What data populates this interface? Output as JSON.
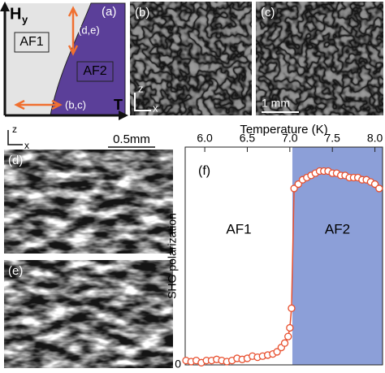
{
  "panel_a": {
    "label": "(a)",
    "y_axis": "H",
    "y_axis_sub": "y",
    "x_axis": "T",
    "phase_1": "AF1",
    "phase_2": "AF2",
    "arrow_vertical": "(d,e)",
    "arrow_horizontal": "(b,c)"
  },
  "panel_b": {
    "label": "(b)",
    "axis_z": "z",
    "axis_x": "x"
  },
  "panel_c": {
    "label": "(c)",
    "scale_bar": "1 mm"
  },
  "panel_d": {
    "label": "(d)",
    "axis_z": "z",
    "axis_x": "x",
    "scale_bar": "0.5mm"
  },
  "panel_e": {
    "label": "(e)"
  },
  "chart_data": {
    "type": "scatter",
    "label": "(f)",
    "x_label": "Temperature (K)",
    "y_label": "SHG polarization",
    "x": [
      5.78,
      5.84,
      5.9,
      5.96,
      6.02,
      6.08,
      6.14,
      6.2,
      6.26,
      6.32,
      6.38,
      6.44,
      6.5,
      6.56,
      6.62,
      6.68,
      6.74,
      6.8,
      6.85,
      6.9,
      6.94,
      6.98,
      7.0,
      7.02,
      7.05,
      7.1,
      7.15,
      7.2,
      7.25,
      7.3,
      7.35,
      7.4,
      7.45,
      7.5,
      7.55,
      7.6,
      7.65,
      7.7,
      7.75,
      7.8,
      7.85,
      7.9,
      7.95,
      8.0,
      8.05
    ],
    "values": [
      0.02,
      0.015,
      0.02,
      0.01,
      0.02,
      0.02,
      0.025,
      0.02,
      0.015,
      0.02,
      0.03,
      0.025,
      0.03,
      0.04,
      0.035,
      0.04,
      0.045,
      0.05,
      0.06,
      0.08,
      0.1,
      0.13,
      0.17,
      0.26,
      0.81,
      0.83,
      0.85,
      0.86,
      0.87,
      0.88,
      0.89,
      0.89,
      0.89,
      0.88,
      0.88,
      0.87,
      0.87,
      0.86,
      0.86,
      0.86,
      0.85,
      0.85,
      0.84,
      0.83,
      0.81
    ],
    "color": "#e8502f",
    "regions": [
      {
        "label": "AF1"
      },
      {
        "label": "AF2",
        "start": 7.03,
        "color": "#8c9fd8"
      }
    ],
    "xlim": [
      5.77,
      8.09
    ],
    "ylim": [
      0,
      1
    ],
    "xticks": [
      {
        "value": 6,
        "label": "6.0"
      },
      {
        "value": 6.5,
        "label": "6.5"
      },
      {
        "value": 7,
        "label": "7.0"
      },
      {
        "value": 7.5,
        "label": "7.5"
      },
      {
        "value": 8,
        "label": "8.0"
      }
    ],
    "yticks": [
      0
    ]
  }
}
